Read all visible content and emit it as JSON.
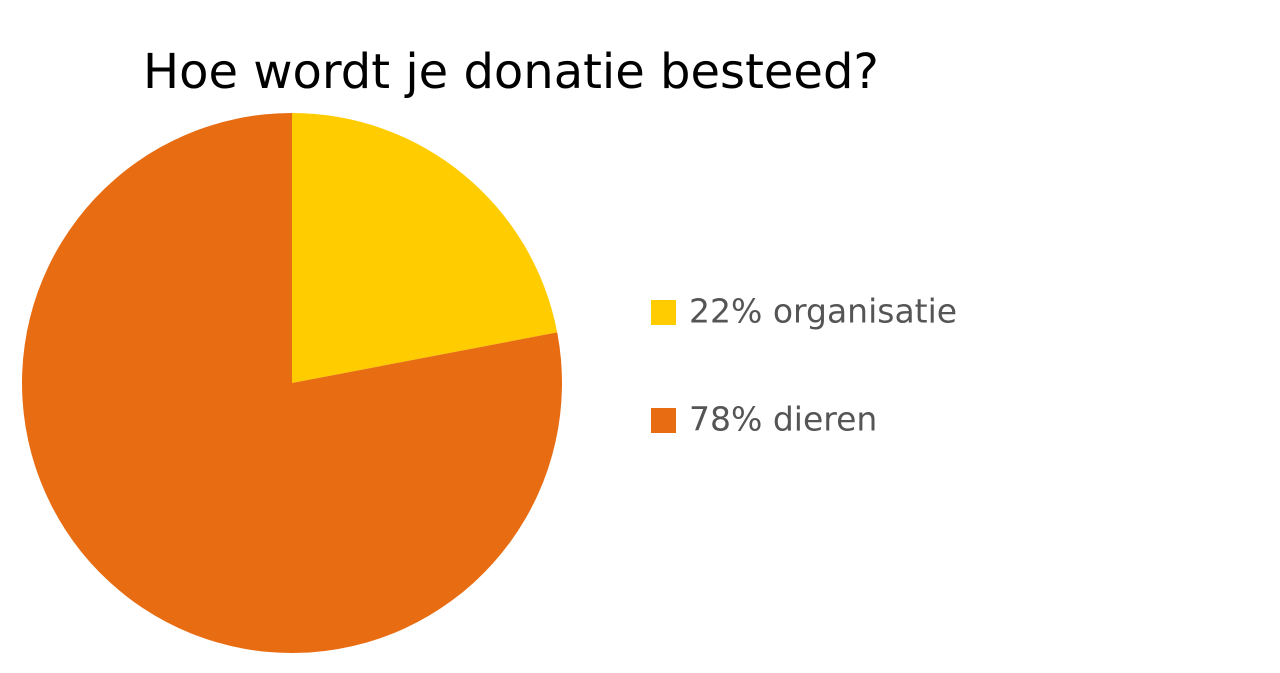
{
  "chart_data": {
    "type": "pie",
    "title": "Hoe wordt je donatie besteed?",
    "categories": [
      "22% organisatie",
      "78% dieren"
    ],
    "values": [
      22,
      78
    ],
    "colors": [
      "#FFCC00",
      "#E86C12"
    ]
  }
}
